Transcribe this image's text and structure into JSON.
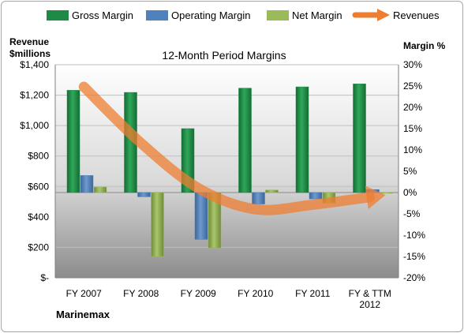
{
  "chart_data": {
    "type": "bar",
    "title": "12-Month Period Margins",
    "company": "Marinemax",
    "categories": [
      [
        "FY 2007"
      ],
      [
        "FY 2008"
      ],
      [
        "FY 2009"
      ],
      [
        "FY 2010"
      ],
      [
        "FY 2011"
      ],
      [
        "FY & TTM",
        "2012"
      ]
    ],
    "left_axis": {
      "title_lines": [
        "Revenue",
        "$millions"
      ],
      "range": [
        0,
        1400
      ],
      "ticks": [
        0,
        200,
        400,
        600,
        800,
        1000,
        1200,
        1400
      ],
      "tick_labels": [
        "$-",
        "$200",
        "$400",
        "$600",
        "$800",
        "$1,000",
        "$1,200",
        "$1,400"
      ]
    },
    "right_axis": {
      "title": "Margin %",
      "range": [
        -20,
        30
      ],
      "ticks": [
        -20,
        -15,
        -10,
        -5,
        0,
        5,
        10,
        15,
        20,
        25,
        30
      ],
      "tick_labels": [
        "-20%",
        "-15%",
        "-10%",
        "-5%",
        "0%",
        "5%",
        "10%",
        "15%",
        "20%",
        "25%",
        "30%"
      ]
    },
    "series": [
      {
        "name": "Gross Margin",
        "axis": "right",
        "color": "#1e8a45",
        "values": [
          24,
          23.5,
          15,
          24.5,
          24.8,
          25.5
        ]
      },
      {
        "name": "Operating Margin",
        "axis": "right",
        "color": "#4f81bd",
        "values": [
          4,
          -1,
          -11,
          -2.7,
          -1.5,
          0.7
        ]
      },
      {
        "name": "Net Margin",
        "axis": "right",
        "color": "#9bbb59",
        "values": [
          1.3,
          -15,
          -13,
          0.6,
          -2.5,
          -0.1
        ]
      },
      {
        "name": "Revenues",
        "axis": "left",
        "type": "line",
        "color": "#ed7d31",
        "values": [
          1255,
          885,
          589,
          450,
          480,
          530
        ]
      }
    ],
    "grid": true,
    "legend_position": "top"
  }
}
